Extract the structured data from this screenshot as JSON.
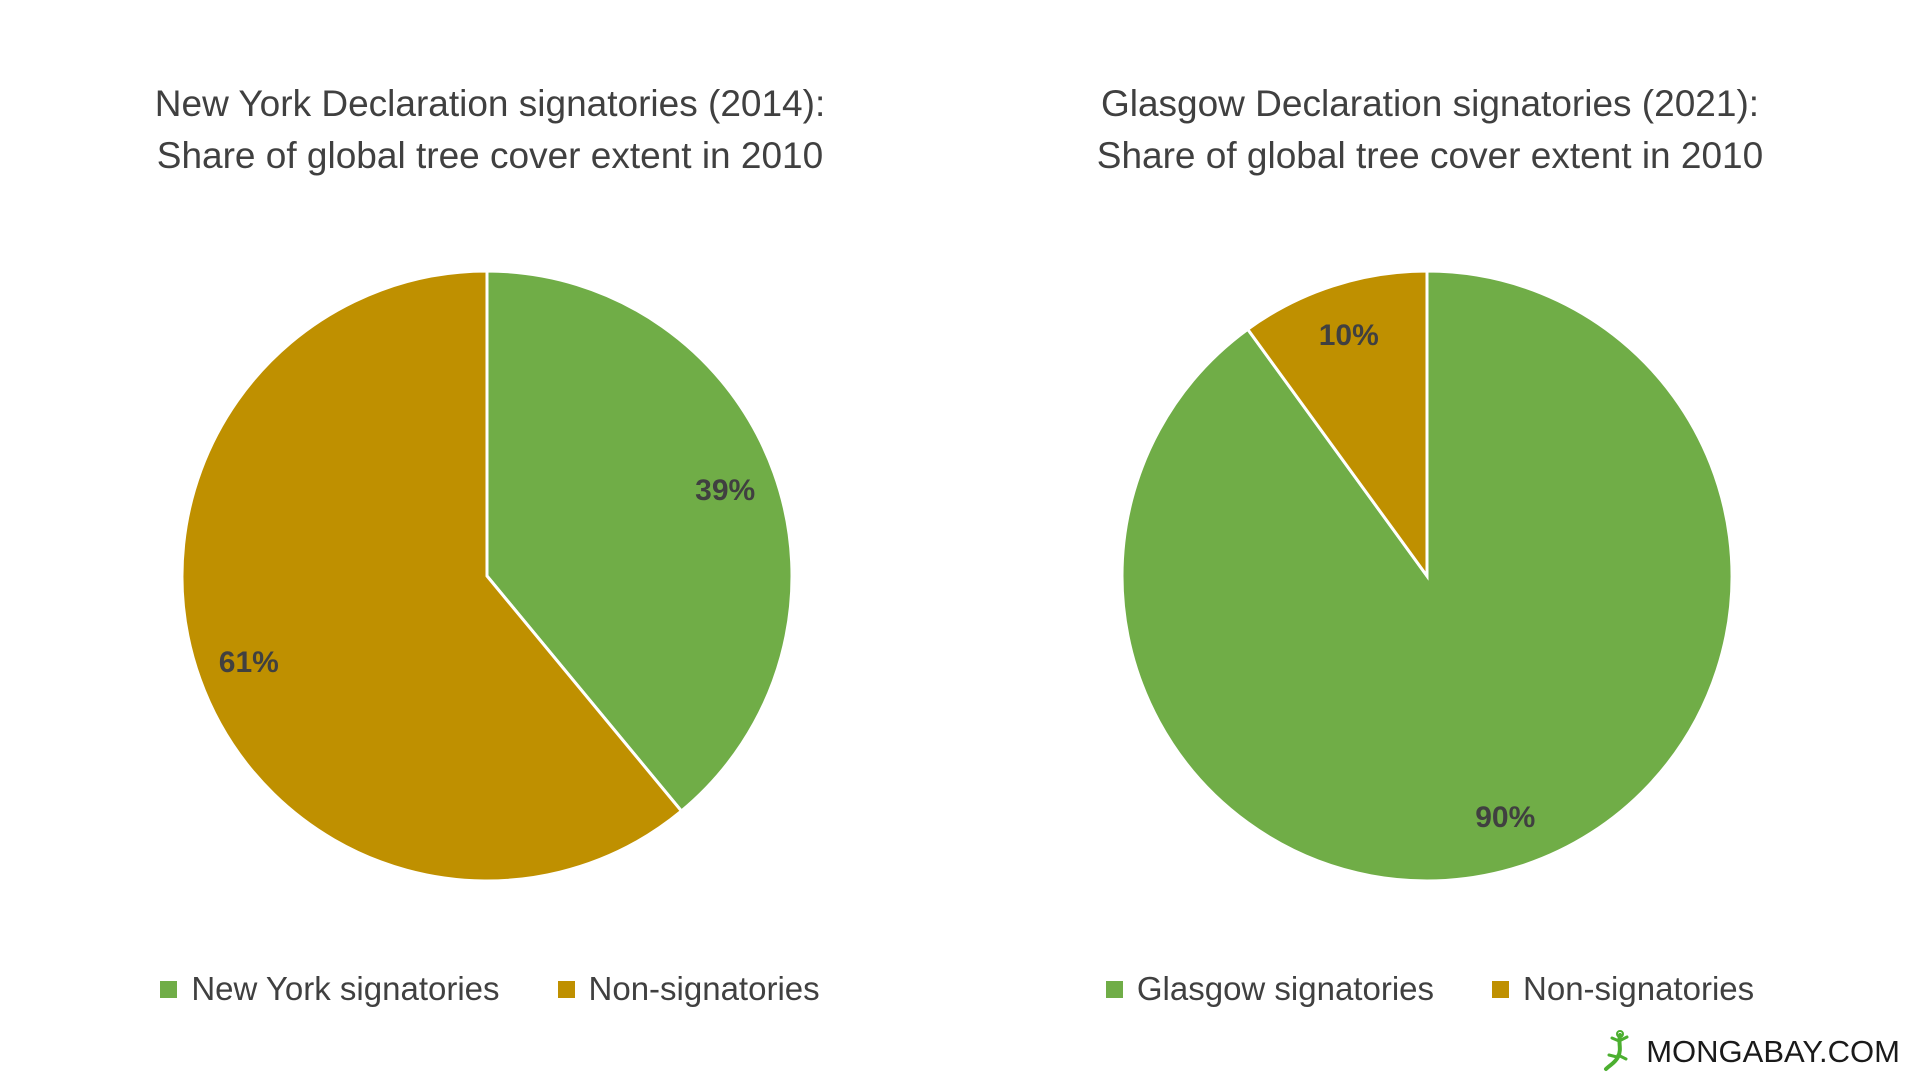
{
  "chart_data": [
    {
      "type": "pie",
      "title": [
        "New York Declaration signatories (2014):",
        "Share of global tree cover extent in 2010"
      ],
      "slices": [
        {
          "label": "New York signatories",
          "value": 39,
          "data_label": "39%",
          "color": "#70AD47"
        },
        {
          "label": "Non-signatories",
          "value": 61,
          "data_label": "61%",
          "color": "#BF9000"
        }
      ],
      "legend_position": "bottom"
    },
    {
      "type": "pie",
      "title": [
        "Glasgow Declaration signatories (2021):",
        "Share of global tree cover extent in 2010"
      ],
      "slices": [
        {
          "label": "Glasgow signatories",
          "value": 90,
          "data_label": "90%",
          "color": "#70AD47"
        },
        {
          "label": "Non-signatories",
          "value": 10,
          "data_label": "10%",
          "color": "#BF9000"
        }
      ],
      "legend_position": "bottom"
    }
  ],
  "brand": {
    "text": "MONGABAY.COM",
    "logo_icon": "gecko-icon",
    "logo_color": "#4caf30"
  }
}
